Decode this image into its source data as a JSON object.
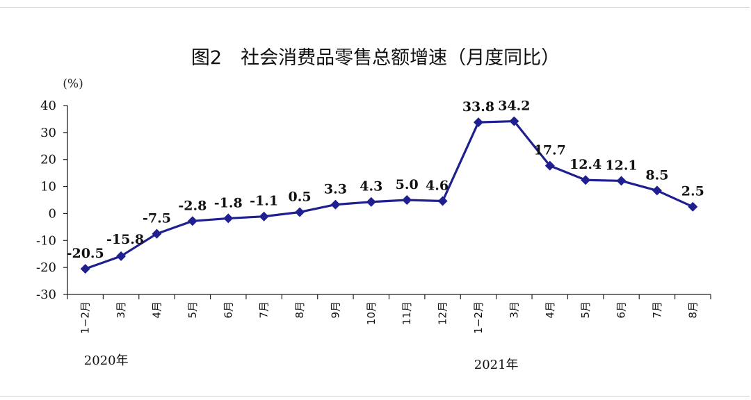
{
  "chart_data": {
    "type": "line",
    "title": "图2　社会消费品零售总额增速（月度同比）",
    "ylabel": "(%)",
    "xlabel": "",
    "ylim": [
      -30,
      40
    ],
    "yticks": [
      40,
      30,
      20,
      10,
      0,
      -10,
      -20,
      -30
    ],
    "categories": [
      "1−2月",
      "3月",
      "4月",
      "5月",
      "6月",
      "7月",
      "8月",
      "9月",
      "10月",
      "11月",
      "12月",
      "1−2月",
      "3月",
      "4月",
      "5月",
      "6月",
      "7月",
      "8月"
    ],
    "year_labels": [
      "2020年",
      "2021年"
    ],
    "series": [
      {
        "values": [
          -20.5,
          -15.8,
          -7.5,
          -2.8,
          -1.8,
          -1.1,
          0.5,
          3.3,
          4.3,
          5.0,
          4.6,
          33.8,
          34.2,
          17.7,
          12.4,
          12.1,
          8.5,
          2.5
        ],
        "labels": [
          "-20.5",
          "-15.8",
          "-7.5",
          "-2.8",
          "-1.8",
          "-1.1",
          "0.5",
          "3.3",
          "4.3",
          "5.0",
          "4.6",
          "33.8",
          "34.2",
          "17.7",
          "12.4",
          "12.1",
          "8.5",
          "2.5"
        ],
        "color": "#1f1f8f"
      }
    ],
    "grid": false
  }
}
